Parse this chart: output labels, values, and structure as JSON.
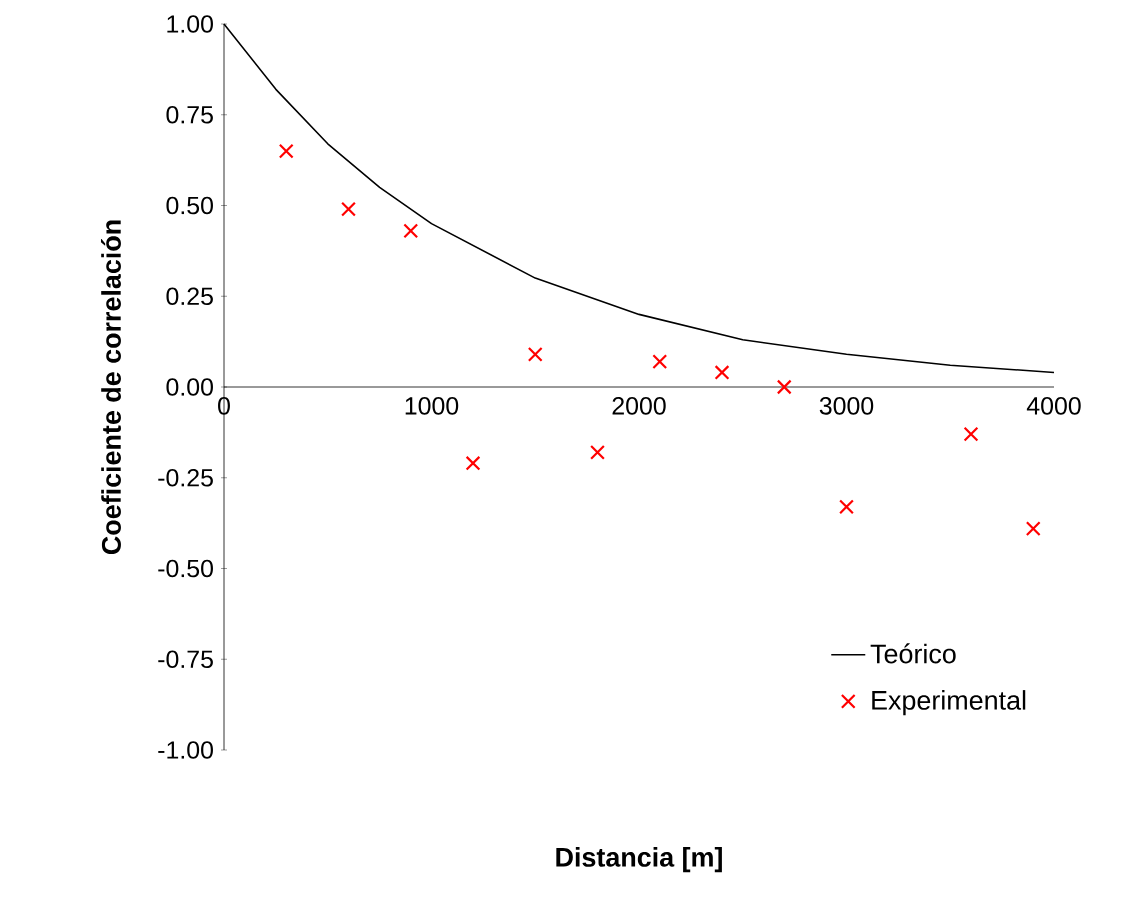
{
  "chart_data": {
    "type": "scatter",
    "xlabel": "Distancia [m]",
    "ylabel": "Coeficiente de correlación",
    "xlim": [
      0,
      4000
    ],
    "ylim": [
      -1,
      1
    ],
    "xticks": [
      0,
      1000,
      2000,
      3000,
      4000
    ],
    "yticks": [
      {
        "value": -1,
        "label": "-1.00"
      },
      {
        "value": -0.75,
        "label": "-0.75"
      },
      {
        "value": -0.5,
        "label": "-0.50"
      },
      {
        "value": -0.25,
        "label": "-0.25"
      },
      {
        "value": 0,
        "label": "0.00"
      },
      {
        "value": 0.25,
        "label": "0.25"
      },
      {
        "value": 0.5,
        "label": "0.50"
      },
      {
        "value": 0.75,
        "label": "0.75"
      },
      {
        "value": 1,
        "label": "1.00"
      }
    ],
    "grid": false,
    "legend": "bottom right",
    "series": [
      {
        "name": "Teórico",
        "type": "line",
        "color": "#000000",
        "marker": "none",
        "line_style": "solid",
        "x": [
          0,
          250,
          500,
          750,
          1000,
          1500,
          2000,
          2500,
          3000,
          3500,
          4000
        ],
        "values": [
          1.0,
          0.82,
          0.67,
          0.55,
          0.45,
          0.3,
          0.2,
          0.13,
          0.09,
          0.06,
          0.04
        ]
      },
      {
        "name": "Experimental",
        "color": "#ff0000",
        "marker": "cross",
        "x": [
          300,
          600,
          900,
          1200,
          1500,
          1800,
          2100,
          2400,
          2700,
          3000,
          3600,
          3900
        ],
        "values": [
          0.65,
          0.49,
          0.43,
          -0.21,
          0.09,
          -0.18,
          0.07,
          0.04,
          0.0,
          -0.33,
          -0.13,
          -0.39
        ]
      }
    ]
  }
}
